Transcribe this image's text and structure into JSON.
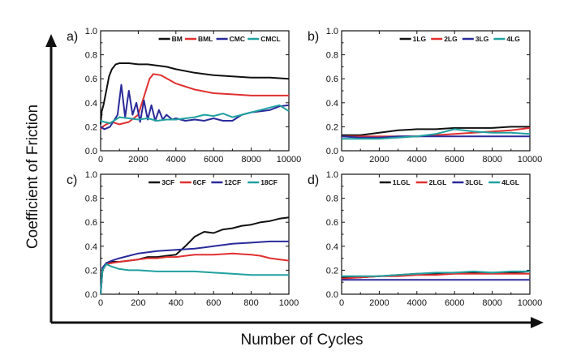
{
  "figure": {
    "xlabel": "Number of Cycles",
    "ylabel": "Coefficient of Friction"
  },
  "chart_data": [
    {
      "panel_label": "a)",
      "type": "line",
      "xlim": [
        0,
        10000
      ],
      "ylim": [
        0,
        1.0
      ],
      "xticks": [
        "0",
        "2000",
        "4000",
        "6000",
        "8000",
        "10000"
      ],
      "yticks": [
        "0.0",
        "0.2",
        "0.4",
        "0.6",
        "0.8",
        "1.0"
      ],
      "legend_position": "top-right",
      "series": [
        {
          "name": "BM",
          "color": "#111111",
          "x": [
            0,
            60,
            150,
            300,
            450,
            600,
            800,
            1000,
            1500,
            2000,
            2500,
            3000,
            3500,
            4000,
            5000,
            6000,
            7000,
            8000,
            9000,
            10000
          ],
          "y": [
            0.22,
            0.33,
            0.38,
            0.5,
            0.62,
            0.68,
            0.72,
            0.73,
            0.73,
            0.72,
            0.72,
            0.71,
            0.7,
            0.68,
            0.65,
            0.63,
            0.62,
            0.61,
            0.61,
            0.6
          ]
        },
        {
          "name": "BML",
          "color": "#e03030",
          "x": [
            0,
            100,
            300,
            600,
            1000,
            1500,
            2000,
            2300,
            2600,
            2800,
            3200,
            4000,
            5000,
            6000,
            7000,
            8000,
            9000,
            10000
          ],
          "y": [
            0.18,
            0.2,
            0.22,
            0.24,
            0.22,
            0.24,
            0.3,
            0.45,
            0.6,
            0.64,
            0.63,
            0.56,
            0.51,
            0.48,
            0.47,
            0.46,
            0.46,
            0.46
          ]
        },
        {
          "name": "CMC",
          "color": "#2a2a9a",
          "x": [
            0,
            200,
            500,
            900,
            1100,
            1300,
            1500,
            1700,
            1900,
            2100,
            2300,
            2500,
            2700,
            2900,
            3100,
            3300,
            3500,
            3800,
            4000,
            4500,
            5000,
            5500,
            6000,
            6500,
            7000,
            7500,
            8000,
            8500,
            9000,
            9500,
            10000
          ],
          "y": [
            0.2,
            0.18,
            0.2,
            0.3,
            0.55,
            0.28,
            0.5,
            0.3,
            0.4,
            0.24,
            0.42,
            0.26,
            0.38,
            0.25,
            0.34,
            0.26,
            0.3,
            0.26,
            0.27,
            0.25,
            0.26,
            0.25,
            0.27,
            0.25,
            0.25,
            0.3,
            0.32,
            0.33,
            0.34,
            0.37,
            0.38
          ]
        },
        {
          "name": "CMCL",
          "color": "#20a0a0",
          "x": [
            0,
            200,
            500,
            800,
            1000,
            1500,
            2000,
            2500,
            3000,
            3500,
            4000,
            4500,
            5000,
            5500,
            6000,
            6500,
            7000,
            7500,
            8000,
            8500,
            9000,
            9500,
            10000
          ],
          "y": [
            0.25,
            0.24,
            0.23,
            0.26,
            0.28,
            0.27,
            0.26,
            0.27,
            0.25,
            0.26,
            0.26,
            0.27,
            0.28,
            0.3,
            0.29,
            0.31,
            0.28,
            0.3,
            0.32,
            0.34,
            0.36,
            0.38,
            0.33
          ]
        }
      ]
    },
    {
      "panel_label": "b)",
      "type": "line",
      "xlim": [
        0,
        10000
      ],
      "ylim": [
        0,
        1.0
      ],
      "xticks": [
        "0",
        "2000",
        "4000",
        "6000",
        "8000",
        "10000"
      ],
      "yticks": [
        "0.0",
        "0.2",
        "0.4",
        "0.6",
        "0.8",
        "1.0"
      ],
      "legend_position": "top-right",
      "series": [
        {
          "name": "1LG",
          "color": "#111111",
          "x": [
            0,
            1000,
            2000,
            3000,
            4000,
            5000,
            6000,
            7000,
            8000,
            9000,
            10000
          ],
          "y": [
            0.13,
            0.13,
            0.15,
            0.17,
            0.18,
            0.18,
            0.19,
            0.19,
            0.19,
            0.2,
            0.2
          ]
        },
        {
          "name": "2LG",
          "color": "#e03030",
          "x": [
            0,
            1000,
            2000,
            3000,
            4000,
            5000,
            6000,
            7000,
            8000,
            9000,
            10000
          ],
          "y": [
            0.12,
            0.12,
            0.12,
            0.12,
            0.12,
            0.13,
            0.14,
            0.15,
            0.16,
            0.17,
            0.19
          ]
        },
        {
          "name": "3LG",
          "color": "#2a2a9a",
          "x": [
            0,
            1000,
            2000,
            3000,
            4000,
            5000,
            6000,
            7000,
            8000,
            9000,
            10000
          ],
          "y": [
            0.12,
            0.11,
            0.11,
            0.12,
            0.12,
            0.12,
            0.12,
            0.12,
            0.12,
            0.12,
            0.12
          ]
        },
        {
          "name": "4LG",
          "color": "#20a0a0",
          "x": [
            0,
            1000,
            2000,
            3000,
            4000,
            5000,
            6000,
            7000,
            8000,
            9000,
            10000
          ],
          "y": [
            0.1,
            0.1,
            0.1,
            0.11,
            0.12,
            0.14,
            0.18,
            0.16,
            0.15,
            0.15,
            0.14
          ]
        }
      ]
    },
    {
      "panel_label": "c)",
      "type": "line",
      "xlim": [
        0,
        1000
      ],
      "ylim": [
        0,
        1.0
      ],
      "xticks": [
        "0",
        "200",
        "400",
        "600",
        "800",
        "1000"
      ],
      "yticks": [
        "0.0",
        "0.2",
        "0.4",
        "0.6",
        "0.8",
        "1.0"
      ],
      "legend_position": "top-right",
      "series": [
        {
          "name": "3CF",
          "color": "#111111",
          "x": [
            0,
            10,
            30,
            60,
            100,
            150,
            200,
            250,
            300,
            350,
            400,
            450,
            500,
            550,
            600,
            650,
            700,
            750,
            800,
            850,
            900,
            950,
            1000
          ],
          "y": [
            0.0,
            0.2,
            0.26,
            0.27,
            0.27,
            0.28,
            0.29,
            0.31,
            0.31,
            0.32,
            0.33,
            0.4,
            0.48,
            0.52,
            0.51,
            0.54,
            0.55,
            0.57,
            0.58,
            0.6,
            0.61,
            0.63,
            0.64
          ]
        },
        {
          "name": "6CF",
          "color": "#e03030",
          "x": [
            0,
            10,
            30,
            60,
            100,
            150,
            200,
            250,
            300,
            350,
            400,
            450,
            500,
            600,
            700,
            800,
            850,
            900,
            950,
            1000
          ],
          "y": [
            0.0,
            0.2,
            0.25,
            0.26,
            0.27,
            0.28,
            0.29,
            0.3,
            0.3,
            0.31,
            0.31,
            0.32,
            0.33,
            0.33,
            0.34,
            0.33,
            0.32,
            0.3,
            0.29,
            0.28
          ]
        },
        {
          "name": "12CF",
          "color": "#2a2a9a",
          "x": [
            0,
            10,
            30,
            60,
            100,
            150,
            200,
            300,
            400,
            500,
            600,
            700,
            800,
            900,
            1000
          ],
          "y": [
            0.0,
            0.22,
            0.26,
            0.28,
            0.3,
            0.32,
            0.34,
            0.36,
            0.37,
            0.38,
            0.4,
            0.42,
            0.43,
            0.44,
            0.44
          ]
        },
        {
          "name": "18CF",
          "color": "#20a0a0",
          "x": [
            0,
            10,
            30,
            60,
            100,
            150,
            200,
            300,
            400,
            500,
            600,
            700,
            800,
            900,
            1000
          ],
          "y": [
            0.0,
            0.2,
            0.25,
            0.23,
            0.21,
            0.2,
            0.2,
            0.19,
            0.19,
            0.19,
            0.18,
            0.17,
            0.16,
            0.16,
            0.16
          ]
        }
      ]
    },
    {
      "panel_label": "d)",
      "type": "line",
      "xlim": [
        0,
        10000
      ],
      "ylim": [
        0,
        1.0
      ],
      "xticks": [
        "0",
        "2000",
        "4000",
        "6000",
        "8000",
        "10000"
      ],
      "yticks": [
        "0.0",
        "0.2",
        "0.4",
        "0.6",
        "0.8",
        "1.0"
      ],
      "legend_position": "top-right",
      "series": [
        {
          "name": "1LGL",
          "color": "#111111",
          "x": [
            0,
            1000,
            2000,
            3000,
            4000,
            5000,
            6000,
            7000,
            8000,
            9000,
            10000
          ],
          "y": [
            0.14,
            0.14,
            0.15,
            0.16,
            0.17,
            0.17,
            0.18,
            0.18,
            0.18,
            0.18,
            0.19
          ]
        },
        {
          "name": "2LGL",
          "color": "#e03030",
          "x": [
            0,
            1000,
            2000,
            3000,
            4000,
            5000,
            6000,
            7000,
            8000,
            9000,
            10000
          ],
          "y": [
            0.13,
            0.14,
            0.15,
            0.15,
            0.16,
            0.16,
            0.17,
            0.17,
            0.17,
            0.17,
            0.17
          ]
        },
        {
          "name": "3LGL",
          "color": "#2a2a9a",
          "x": [
            0,
            1000,
            2000,
            3000,
            4000,
            5000,
            6000,
            7000,
            8000,
            9000,
            10000
          ],
          "y": [
            0.12,
            0.12,
            0.12,
            0.12,
            0.12,
            0.12,
            0.12,
            0.12,
            0.12,
            0.12,
            0.12
          ]
        },
        {
          "name": "4LGL",
          "color": "#20a0a0",
          "x": [
            0,
            1000,
            2000,
            3000,
            4000,
            5000,
            6000,
            7000,
            8000,
            9000,
            10000
          ],
          "y": [
            0.15,
            0.15,
            0.15,
            0.16,
            0.17,
            0.18,
            0.18,
            0.19,
            0.18,
            0.19,
            0.19
          ]
        }
      ]
    }
  ]
}
